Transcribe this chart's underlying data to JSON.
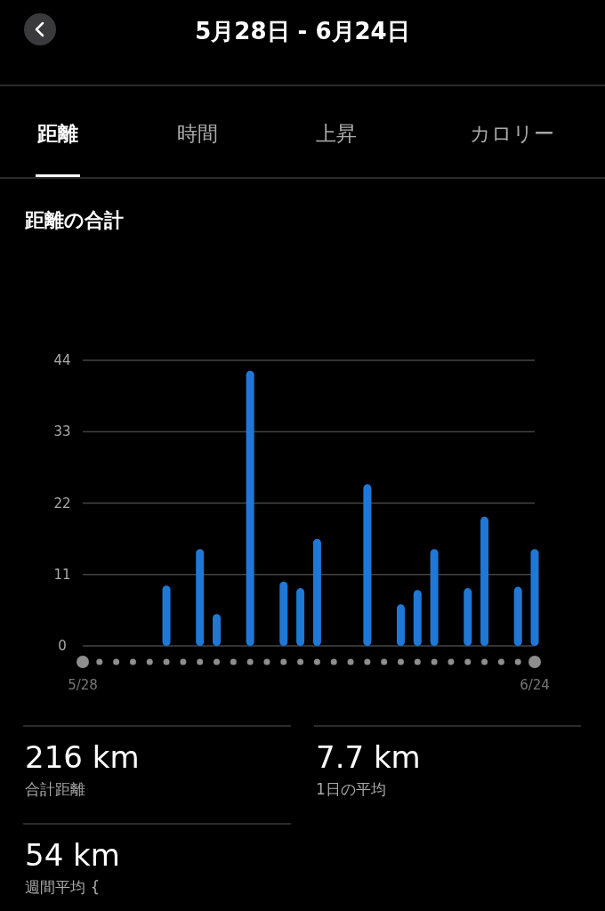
{
  "chart_data": {
    "type": "bar",
    "title": "距離の合計",
    "subtitle": "5月28日 - 6月24日",
    "annotations": [
      "距離",
      "時間",
      "上昇",
      "カロリー",
      "216 km",
      "合計距離",
      "7.7 km",
      "1日の平均",
      "54 km",
      "週間平均 {"
    ],
    "categories": [
      "5/28",
      null,
      null,
      null,
      null,
      null,
      null,
      null,
      null,
      null,
      null,
      null,
      null,
      null,
      null,
      null,
      null,
      null,
      null,
      null,
      null,
      null,
      null,
      null,
      null,
      null,
      null,
      "6/24"
    ],
    "values": [
      0,
      0,
      0,
      0,
      0,
      9.3,
      0,
      14.9,
      4.9,
      0,
      42.4,
      0,
      9.9,
      8.9,
      16.5,
      0,
      0,
      24.9,
      0,
      6.4,
      8.6,
      14.9,
      0,
      8.9,
      19.9,
      0,
      9.1,
      14.9
    ],
    "color": "#1f78d6",
    "ylim": [
      0,
      44
    ],
    "yticks": [
      0,
      11,
      22,
      33,
      44
    ],
    "grid": "y"
  }
}
